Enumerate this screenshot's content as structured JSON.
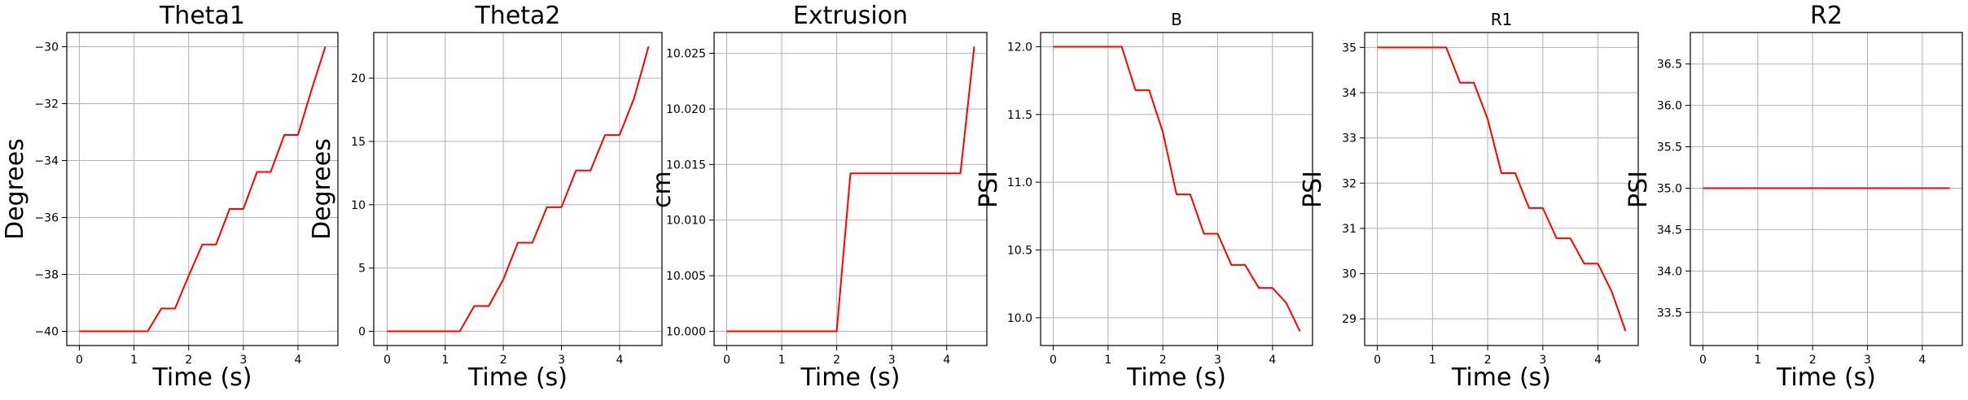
{
  "chart_data": [
    {
      "type": "line",
      "title": "Theta1",
      "xlabel": "Time (s)",
      "ylabel": "Degrees",
      "xlim": [
        -0.23,
        4.73
      ],
      "ylim": [
        -40.5,
        -29.5
      ],
      "xticks": [
        0,
        1,
        2,
        3,
        4
      ],
      "xtick_labels": [
        "0",
        "1",
        "2",
        "3",
        "4"
      ],
      "yticks": [
        -40,
        -38,
        -36,
        -34,
        -32,
        -30
      ],
      "ytick_labels": [
        "−40",
        "−38",
        "−36",
        "−34",
        "−32",
        "−30"
      ],
      "grid": true,
      "series": [
        {
          "color": "#ff0000",
          "x": [
            0,
            1.25,
            1.5,
            1.75,
            2.0,
            2.25,
            2.5,
            2.75,
            3.0,
            3.25,
            3.5,
            3.75,
            4.0,
            4.25,
            4.5
          ],
          "y": [
            -40,
            -40,
            -39.2,
            -39.2,
            -38.05,
            -36.95,
            -36.95,
            -35.7,
            -35.7,
            -34.4,
            -34.4,
            -33.1,
            -33.1,
            -31.5,
            -30.0
          ]
        }
      ]
    },
    {
      "type": "line",
      "title": "Theta2",
      "xlabel": "Time (s)",
      "ylabel": "Degrees",
      "xlim": [
        -0.23,
        4.73
      ],
      "ylim": [
        -1.12,
        23.6
      ],
      "xticks": [
        0,
        1,
        2,
        3,
        4
      ],
      "xtick_labels": [
        "0",
        "1",
        "2",
        "3",
        "4"
      ],
      "yticks": [
        0,
        5,
        10,
        15,
        20
      ],
      "ytick_labels": [
        "0",
        "5",
        "10",
        "15",
        "20"
      ],
      "grid": true,
      "series": [
        {
          "color": "#ff0000",
          "x": [
            0,
            1.25,
            1.5,
            1.75,
            2.0,
            2.25,
            2.5,
            2.75,
            3.0,
            3.25,
            3.5,
            3.75,
            4.0,
            4.25,
            4.5
          ],
          "y": [
            0,
            0,
            2.0,
            2.0,
            4.1,
            7.0,
            7.0,
            9.8,
            9.8,
            12.7,
            12.7,
            15.5,
            15.5,
            18.4,
            22.5
          ]
        }
      ]
    },
    {
      "type": "line",
      "title": "Extrusion",
      "xlabel": "Time (s)",
      "ylabel": "cm",
      "xlim": [
        -0.23,
        4.73
      ],
      "ylim": [
        9.99872,
        10.02687
      ],
      "xticks": [
        0,
        1,
        2,
        3,
        4
      ],
      "xtick_labels": [
        "0",
        "1",
        "2",
        "3",
        "4"
      ],
      "yticks": [
        10.0,
        10.005,
        10.01,
        10.015,
        10.02,
        10.025
      ],
      "ytick_labels": [
        "10.000",
        "10.005",
        "10.010",
        "10.015",
        "10.020",
        "10.025"
      ],
      "grid": true,
      "series": [
        {
          "color": "#ff0000",
          "x": [
            0,
            2.0,
            2.25,
            4.25,
            4.5
          ],
          "y": [
            10.0,
            10.0,
            10.0142,
            10.0142,
            10.0256
          ]
        }
      ]
    },
    {
      "type": "line",
      "title": "B",
      "xlabel": "Time (s)",
      "ylabel": "PSI",
      "xlim": [
        -0.23,
        4.73
      ],
      "ylim": [
        9.795,
        12.105
      ],
      "xticks": [
        0,
        1,
        2,
        3,
        4
      ],
      "xtick_labels": [
        "0",
        "1",
        "2",
        "3",
        "4"
      ],
      "yticks": [
        10.0,
        10.5,
        11.0,
        11.5,
        12.0
      ],
      "ytick_labels": [
        "10.0",
        "10.5",
        "11.0",
        "11.5",
        "12.0"
      ],
      "grid": true,
      "series": [
        {
          "color": "#ff0000",
          "x": [
            0,
            1.25,
            1.5,
            1.75,
            2.0,
            2.25,
            2.5,
            2.75,
            3.0,
            3.25,
            3.5,
            3.75,
            4.0,
            4.25,
            4.5
          ],
          "y": [
            12.0,
            12.0,
            11.68,
            11.68,
            11.37,
            10.91,
            10.91,
            10.62,
            10.62,
            10.39,
            10.39,
            10.22,
            10.22,
            10.11,
            9.9
          ]
        }
      ]
    },
    {
      "type": "line",
      "title": "R1",
      "xlabel": "Time (s)",
      "ylabel": "PSI",
      "xlim": [
        -0.23,
        4.73
      ],
      "ylim": [
        28.41,
        35.33
      ],
      "xticks": [
        0,
        1,
        2,
        3,
        4
      ],
      "xtick_labels": [
        "0",
        "1",
        "2",
        "3",
        "4"
      ],
      "yticks": [
        29,
        30,
        31,
        32,
        33,
        34,
        35
      ],
      "ytick_labels": [
        "29",
        "30",
        "31",
        "32",
        "33",
        "34",
        "35"
      ],
      "grid": true,
      "series": [
        {
          "color": "#ff0000",
          "x": [
            0,
            1.25,
            1.5,
            1.75,
            2.0,
            2.25,
            2.5,
            2.75,
            3.0,
            3.25,
            3.5,
            3.75,
            4.0,
            4.25,
            4.5
          ],
          "y": [
            35.0,
            35.0,
            34.22,
            34.22,
            33.42,
            32.22,
            32.22,
            31.45,
            31.45,
            30.78,
            30.78,
            30.22,
            30.22,
            29.6,
            28.73
          ]
        }
      ]
    },
    {
      "type": "line",
      "title": "R2",
      "xlabel": "Time (s)",
      "ylabel": "PSI",
      "xlim": [
        -0.23,
        4.73
      ],
      "ylim": [
        33.1,
        36.88
      ],
      "xticks": [
        0,
        1,
        2,
        3,
        4
      ],
      "xtick_labels": [
        "0",
        "1",
        "2",
        "3",
        "4"
      ],
      "yticks": [
        33.5,
        34.0,
        34.5,
        35.0,
        35.5,
        36.0,
        36.5
      ],
      "ytick_labels": [
        "33.5",
        "34.0",
        "34.5",
        "35.0",
        "35.5",
        "36.0",
        "36.5"
      ],
      "grid": true,
      "series": [
        {
          "color": "#ff0000",
          "x": [
            0,
            4.5
          ],
          "y": [
            35.0,
            35.0
          ]
        }
      ]
    }
  ]
}
